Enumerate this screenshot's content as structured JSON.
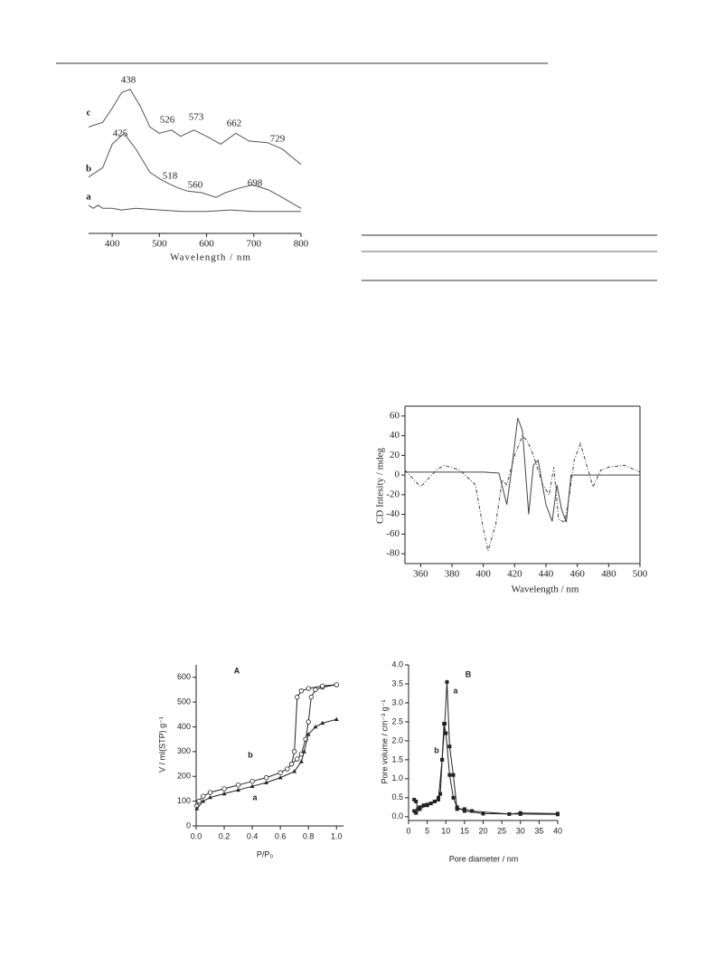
{
  "chart_data": [
    {
      "type": "line",
      "axes": "x",
      "xlabel": "Wavelength / nm",
      "xlim": [
        350,
        800
      ],
      "ylim": [
        0,
        100
      ],
      "xticks": [
        400,
        500,
        600,
        700,
        800
      ],
      "annotations": [
        "438",
        "526",
        "573",
        "662",
        "729",
        "425",
        "518",
        "560",
        "698"
      ],
      "series": [
        {
          "name": "c",
          "color": "#555555",
          "x": [
            350,
            380,
            400,
            420,
            438,
            460,
            480,
            500,
            526,
            545,
            573,
            600,
            630,
            662,
            690,
            729,
            760,
            800
          ],
          "values": [
            68,
            71,
            80,
            90,
            92,
            81,
            68,
            64,
            66,
            62,
            66,
            62,
            57,
            64,
            59,
            58,
            54,
            44
          ]
        },
        {
          "name": "b",
          "color": "#555555",
          "x": [
            350,
            380,
            400,
            425,
            450,
            480,
            500,
            518,
            540,
            560,
            590,
            620,
            640,
            670,
            698,
            730,
            760,
            800
          ],
          "values": [
            36,
            42,
            57,
            64,
            54,
            39,
            35,
            32,
            29,
            27,
            26,
            23,
            26,
            29,
            31,
            28,
            23,
            16
          ]
        },
        {
          "name": "a",
          "color": "#555555",
          "x": [
            350,
            360,
            370,
            380,
            400,
            420,
            450,
            500,
            550,
            600,
            650,
            700,
            750,
            800
          ],
          "values": [
            18,
            16,
            18,
            16,
            16,
            15,
            16,
            15,
            14,
            14,
            15,
            14,
            14,
            14
          ]
        }
      ]
    },
    {
      "type": "line",
      "axes": "box",
      "xlabel": "Wavelength / nm",
      "ylabel": "CD Intesity / mdeg",
      "xlim": [
        350,
        500
      ],
      "ylim": [
        -90,
        70
      ],
      "xticks": [
        360,
        380,
        400,
        420,
        440,
        460,
        480,
        500
      ],
      "yticks": [
        -80,
        -60,
        -40,
        -20,
        0,
        20,
        40,
        60
      ],
      "series": [
        {
          "color": "#444444",
          "dash": true,
          "x": [
            350,
            360,
            370,
            375,
            385,
            395,
            400,
            403,
            408,
            412,
            415,
            420,
            425,
            428,
            432,
            438,
            442,
            445,
            448,
            452,
            455,
            458,
            462,
            466,
            470,
            475,
            480,
            490,
            500
          ],
          "values": [
            5,
            -12,
            5,
            10,
            5,
            -10,
            -55,
            -77,
            -50,
            -5,
            -10,
            20,
            40,
            35,
            20,
            -10,
            -20,
            8,
            -45,
            -48,
            -20,
            15,
            32,
            10,
            -12,
            5,
            8,
            10,
            3
          ]
        },
        {
          "color": "#444444",
          "x": [
            350,
            400,
            410,
            415,
            418,
            422,
            425,
            429,
            432,
            435,
            440,
            444,
            447,
            450,
            453,
            456,
            470,
            500
          ],
          "values": [
            3,
            3,
            2,
            -30,
            5,
            58,
            45,
            -40,
            10,
            15,
            -30,
            -47,
            -10,
            -35,
            -48,
            0,
            0,
            0
          ]
        }
      ]
    },
    {
      "type": "scatter",
      "axes": "xy",
      "title": "A",
      "xlabel": "P/P₀",
      "ylabel": "V / ml(STP) g⁻¹",
      "xlim": [
        0,
        1.05
      ],
      "ylim": [
        0,
        650
      ],
      "xticks": [
        {
          "value": 0,
          "label": "0.0"
        },
        {
          "value": 0.2,
          "label": "0.2"
        },
        {
          "value": 0.4,
          "label": "0.4"
        },
        {
          "value": 0.6,
          "label": "0.6"
        },
        {
          "value": 0.8,
          "label": "0.8"
        },
        {
          "value": 1,
          "label": "1.0"
        }
      ],
      "yticks": [
        0,
        100,
        200,
        300,
        400,
        500,
        600
      ],
      "series": [
        {
          "name": "b",
          "color": "#222222",
          "marker": "circle-open",
          "x": [
            0.005,
            0.02,
            0.05,
            0.1,
            0.2,
            0.3,
            0.4,
            0.5,
            0.6,
            0.65,
            0.68,
            0.72,
            0.75,
            0.78,
            0.8,
            0.82,
            0.85,
            0.9,
            1.0,
            0.9,
            0.8,
            0.75,
            0.72,
            0.7,
            0.68
          ],
          "values": [
            80,
            100,
            120,
            135,
            150,
            165,
            180,
            195,
            215,
            230,
            250,
            270,
            290,
            350,
            420,
            520,
            550,
            560,
            570,
            565,
            555,
            545,
            520,
            300,
            250
          ]
        },
        {
          "name": "a",
          "color": "#222222",
          "marker": "triangle",
          "x": [
            0.005,
            0.05,
            0.1,
            0.2,
            0.3,
            0.4,
            0.5,
            0.6,
            0.7,
            0.75,
            0.77,
            0.8,
            0.85,
            0.9,
            1.0
          ],
          "values": [
            70,
            100,
            115,
            130,
            145,
            160,
            175,
            195,
            220,
            260,
            300,
            370,
            400,
            415,
            430
          ]
        }
      ]
    },
    {
      "type": "scatter",
      "axes": "xy",
      "title": "B",
      "xlabel": "Pore diameter / nm",
      "ylabel": "Pore volume / cm⁻³ g⁻¹",
      "xlim": [
        0,
        40
      ],
      "ylim": [
        -0.1,
        4.0
      ],
      "xticks": [
        0,
        5,
        10,
        15,
        20,
        25,
        30,
        35,
        40
      ],
      "yticks": [
        {
          "value": 0,
          "label": "0.0"
        },
        {
          "value": 0.5,
          "label": "0.5"
        },
        {
          "value": 1,
          "label": "1.0"
        },
        {
          "value": 1.5,
          "label": "1.5"
        },
        {
          "value": 2,
          "label": "2.0"
        },
        {
          "value": 2.5,
          "label": "2.5"
        },
        {
          "value": 3,
          "label": "3.0"
        },
        {
          "value": 3.5,
          "label": "3.5"
        },
        {
          "value": 4,
          "label": "4.0"
        }
      ],
      "series": [
        {
          "name": "a",
          "color": "#222222",
          "marker": "square",
          "x": [
            1.5,
            2,
            2.5,
            3,
            4,
            5,
            6,
            7,
            8,
            9,
            9.7,
            10.3,
            11,
            12,
            13,
            15,
            17,
            27,
            30,
            40
          ],
          "values": [
            0.45,
            0.4,
            0.2,
            0.25,
            0.3,
            0.32,
            0.35,
            0.4,
            0.45,
            1.5,
            2.45,
            3.55,
            1.85,
            1.1,
            0.2,
            0.2,
            0.15,
            0.07,
            0.1,
            0.08
          ]
        },
        {
          "name": "b",
          "color": "#222222",
          "marker": "square",
          "x": [
            1.5,
            2,
            3,
            5,
            7,
            8,
            8.5,
            9,
            9.5,
            10,
            11,
            12,
            13,
            15,
            20,
            30,
            40
          ],
          "values": [
            0.15,
            0.1,
            0.2,
            0.3,
            0.4,
            0.5,
            0.6,
            1.5,
            2.45,
            2.2,
            1.1,
            0.5,
            0.25,
            0.15,
            0.08,
            0.07,
            0.06
          ]
        }
      ]
    }
  ]
}
